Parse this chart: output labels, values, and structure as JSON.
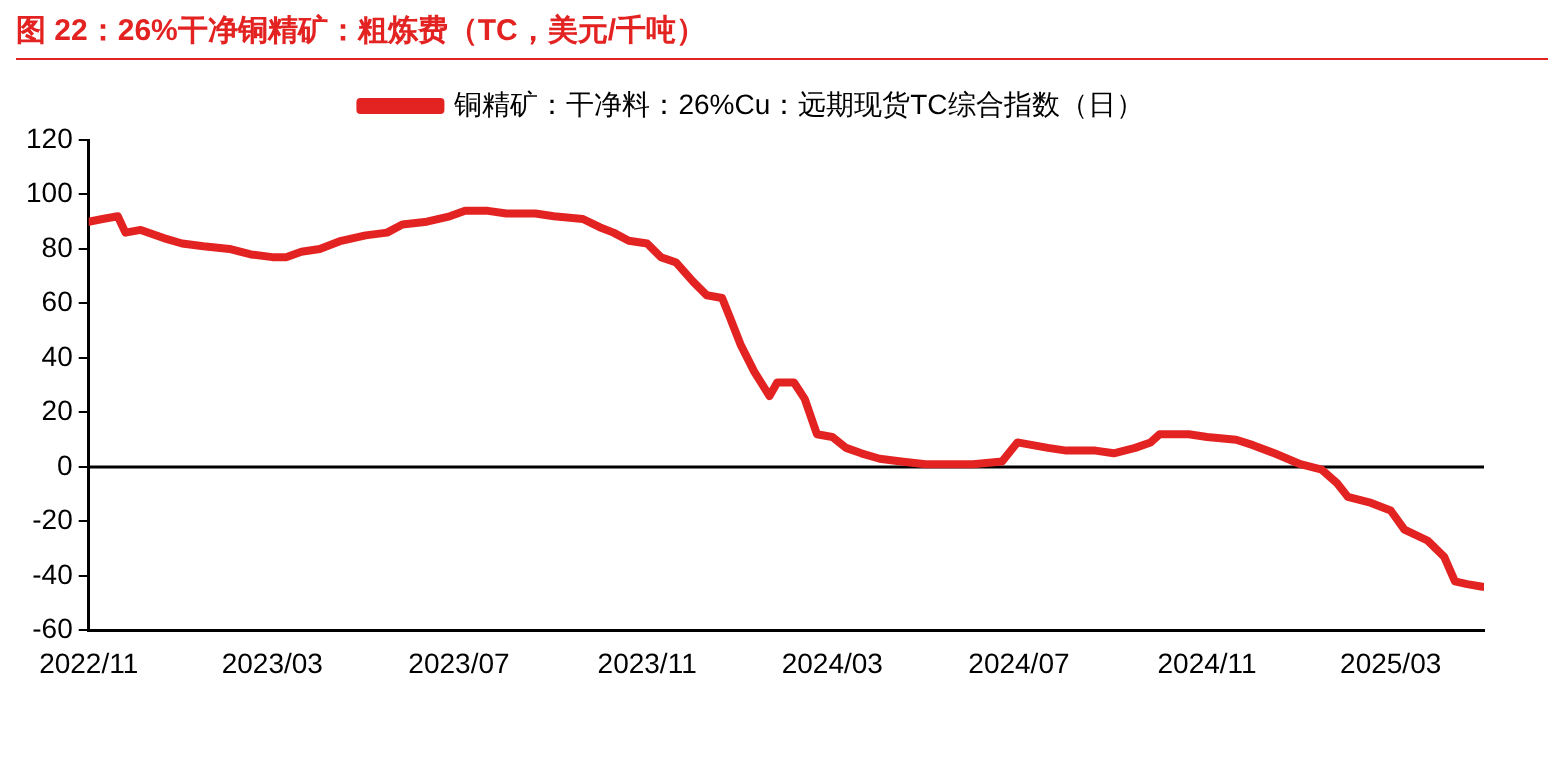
{
  "chart_data": {
    "type": "line",
    "title": "图 22：26%干净铜精矿：粗炼费（TC，美元/千吨）",
    "legend": "top",
    "marker": "none",
    "line_style": "solid",
    "grid": false,
    "x": [
      "2022-11-01",
      "2022-11-10",
      "2022-11-20",
      "2022-11-25",
      "2022-12-05",
      "2022-12-20",
      "2023-01-01",
      "2023-01-15",
      "2023-02-01",
      "2023-02-15",
      "2023-03-01",
      "2023-03-10",
      "2023-03-20",
      "2023-04-01",
      "2023-04-15",
      "2023-05-01",
      "2023-05-15",
      "2023-05-25",
      "2023-06-10",
      "2023-06-25",
      "2023-07-05",
      "2023-07-20",
      "2023-08-01",
      "2023-08-20",
      "2023-09-01",
      "2023-09-20",
      "2023-10-01",
      "2023-10-10",
      "2023-10-20",
      "2023-11-01",
      "2023-11-10",
      "2023-11-20",
      "2023-12-01",
      "2023-12-10",
      "2023-12-20",
      "2023-12-25",
      "2024-01-01",
      "2024-01-10",
      "2024-01-20",
      "2024-01-25",
      "2024-02-05",
      "2024-02-12",
      "2024-02-20",
      "2024-03-01",
      "2024-03-10",
      "2024-03-20",
      "2024-04-01",
      "2024-04-15",
      "2024-05-01",
      "2024-05-15",
      "2024-06-01",
      "2024-06-20",
      "2024-06-30",
      "2024-07-10",
      "2024-07-20",
      "2024-08-01",
      "2024-08-20",
      "2024-09-01",
      "2024-09-15",
      "2024-09-25",
      "2024-10-01",
      "2024-10-20",
      "2024-11-01",
      "2024-11-20",
      "2024-12-01",
      "2024-12-15",
      "2025-01-01",
      "2025-01-15",
      "2025-01-25",
      "2025-02-01",
      "2025-02-15",
      "2025-03-01",
      "2025-03-10",
      "2025-03-25",
      "2025-04-05",
      "2025-04-12",
      "2025-04-20",
      "2025-04-30"
    ],
    "series": [
      {
        "name": "铜精矿：干净料：26%Cu：远期现货TC综合指数（日）",
        "color": "#e32322",
        "values": [
          90,
          91,
          92,
          86,
          87,
          84,
          82,
          81,
          80,
          78,
          77,
          77,
          79,
          80,
          83,
          85,
          86,
          89,
          90,
          92,
          94,
          94,
          93,
          93,
          92,
          91,
          88,
          86,
          83,
          82,
          77,
          75,
          68,
          63,
          62,
          55,
          45,
          35,
          26,
          31,
          31,
          25,
          12,
          11,
          7,
          5,
          3,
          2,
          1,
          1,
          1,
          2,
          9,
          8,
          7,
          6,
          6,
          5,
          7,
          9,
          12,
          12,
          11,
          10,
          8,
          5,
          1,
          -1,
          -6,
          -11,
          -13,
          -16,
          -23,
          -27,
          -33,
          -42,
          -43,
          -44
        ]
      }
    ],
    "xlim": [
      "2022-11-01",
      "2025-05-01"
    ],
    "xticks": [
      {
        "value": "2022-11-01",
        "label": "2022/11"
      },
      {
        "value": "2023-03-01",
        "label": "2023/03"
      },
      {
        "value": "2023-07-01",
        "label": "2023/07"
      },
      {
        "value": "2023-11-01",
        "label": "2023/11"
      },
      {
        "value": "2024-03-01",
        "label": "2024/03"
      },
      {
        "value": "2024-07-01",
        "label": "2024/07"
      },
      {
        "value": "2024-11-01",
        "label": "2024/11"
      },
      {
        "value": "2025-03-01",
        "label": "2025/03"
      }
    ],
    "ref_lines": [
      {
        "axis": "y",
        "value": 0,
        "color": "#000000"
      }
    ],
    "ylim": [
      -60,
      120
    ],
    "yticks": [
      -60,
      -40,
      -20,
      0,
      20,
      40,
      60,
      80,
      100,
      120
    ]
  }
}
